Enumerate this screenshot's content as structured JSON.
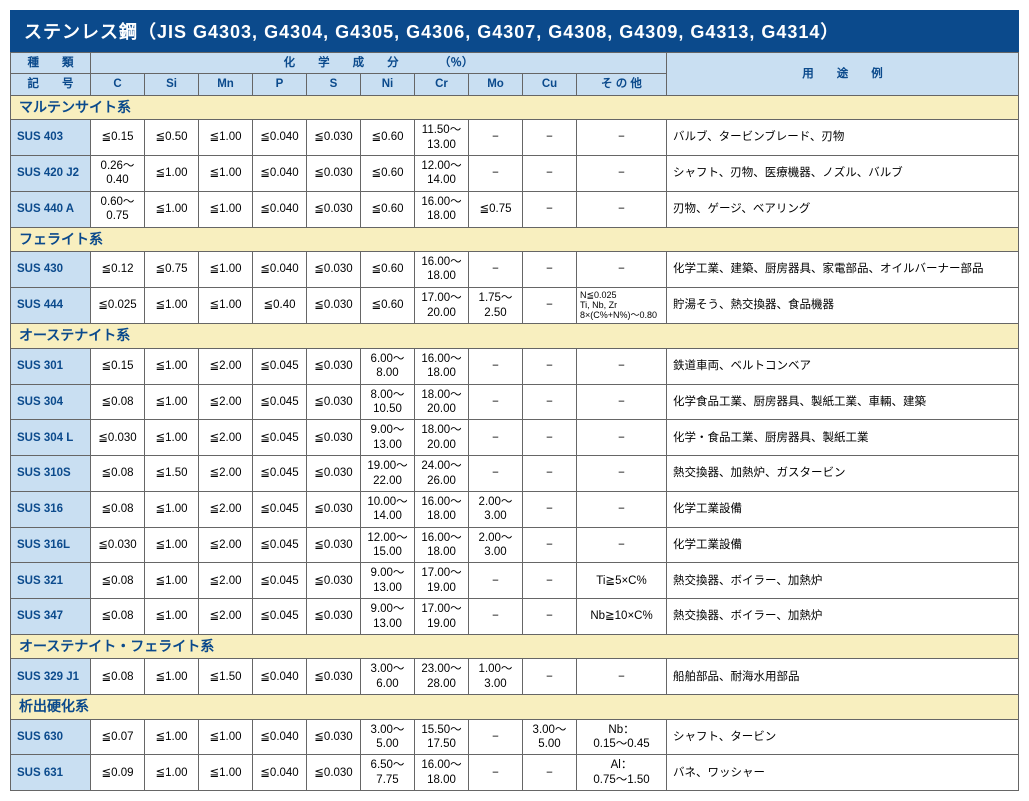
{
  "title": "ステンレス鋼（JIS G4303, G4304, G4305, G4306, G4307, G4308, G4309, G4313, G4314）",
  "headers": {
    "kind": "種　　類",
    "chem": "化　　学　　成　　分　　　　（％）",
    "use": "用　　途　　例",
    "grade": "記　　号",
    "cols": [
      "C",
      "Si",
      "Mn",
      "P",
      "S",
      "Ni",
      "Cr",
      "Mo",
      "Cu",
      "そ の 他"
    ]
  },
  "groups": [
    {
      "name": "マルテンサイト系",
      "rows": [
        {
          "grade": "SUS 403",
          "c": "≦0.15",
          "si": "≦0.50",
          "mn": "≦1.00",
          "p": "≦0.040",
          "s": "≦0.030",
          "ni": "≦0.60",
          "cr": "11.50～\n13.00",
          "mo": "−",
          "cu": "−",
          "other": "−",
          "use": "バルブ、タービンブレード、刃物"
        },
        {
          "grade": "SUS 420 J2",
          "c": "0.26～\n0.40",
          "si": "≦1.00",
          "mn": "≦1.00",
          "p": "≦0.040",
          "s": "≦0.030",
          "ni": "≦0.60",
          "cr": "12.00～\n14.00",
          "mo": "−",
          "cu": "−",
          "other": "−",
          "use": "シャフト、刃物、医療機器、ノズル、バルブ"
        },
        {
          "grade": "SUS 440 A",
          "c": "0.60～\n0.75",
          "si": "≦1.00",
          "mn": "≦1.00",
          "p": "≦0.040",
          "s": "≦0.030",
          "ni": "≦0.60",
          "cr": "16.00～\n18.00",
          "mo": "≦0.75",
          "cu": "−",
          "other": "−",
          "use": "刃物、ゲージ、ベアリング"
        }
      ]
    },
    {
      "name": "フェライト系",
      "rows": [
        {
          "grade": "SUS 430",
          "c": "≦0.12",
          "si": "≦0.75",
          "mn": "≦1.00",
          "p": "≦0.040",
          "s": "≦0.030",
          "ni": "≦0.60",
          "cr": "16.00～\n18.00",
          "mo": "−",
          "cu": "−",
          "other": "−",
          "use": "化学工業、建築、厨房器具、家電部品、オイルバーナー部品"
        },
        {
          "grade": "SUS 444",
          "c": "≦0.025",
          "si": "≦1.00",
          "mn": "≦1.00",
          "p": "≦0.40",
          "s": "≦0.030",
          "ni": "≦0.60",
          "cr": "17.00～\n20.00",
          "mo": "1.75～\n2.50",
          "cu": "−",
          "other": "N≦0.025\nTi, Nb, Zr\n8×(C%+N%)～0.80",
          "other_small": true,
          "use": "貯湯そう、熱交換器、食品機器"
        }
      ]
    },
    {
      "name": "オーステナイト系",
      "rows": [
        {
          "grade": "SUS 301",
          "c": "≦0.15",
          "si": "≦1.00",
          "mn": "≦2.00",
          "p": "≦0.045",
          "s": "≦0.030",
          "ni": "6.00～\n8.00",
          "cr": "16.00～\n18.00",
          "mo": "−",
          "cu": "−",
          "other": "−",
          "use": "鉄道車両、ベルトコンベア"
        },
        {
          "grade": "SUS 304",
          "c": "≦0.08",
          "si": "≦1.00",
          "mn": "≦2.00",
          "p": "≦0.045",
          "s": "≦0.030",
          "ni": "8.00～\n10.50",
          "cr": "18.00～\n20.00",
          "mo": "−",
          "cu": "−",
          "other": "−",
          "use": "化学食品工業、厨房器具、製紙工業、車輛、建築"
        },
        {
          "grade": "SUS 304 L",
          "c": "≦0.030",
          "si": "≦1.00",
          "mn": "≦2.00",
          "p": "≦0.045",
          "s": "≦0.030",
          "ni": "9.00～\n13.00",
          "cr": "18.00～\n20.00",
          "mo": "−",
          "cu": "−",
          "other": "−",
          "use": "化学・食品工業、厨房器具、製紙工業"
        },
        {
          "grade": "SUS 310S",
          "c": "≦0.08",
          "si": "≦1.50",
          "mn": "≦2.00",
          "p": "≦0.045",
          "s": "≦0.030",
          "ni": "19.00～\n22.00",
          "cr": "24.00～\n26.00",
          "mo": "−",
          "cu": "−",
          "other": "−",
          "use": "熱交換器、加熱炉、ガスタービン"
        },
        {
          "grade": "SUS 316",
          "c": "≦0.08",
          "si": "≦1.00",
          "mn": "≦2.00",
          "p": "≦0.045",
          "s": "≦0.030",
          "ni": "10.00～\n14.00",
          "cr": "16.00～\n18.00",
          "mo": "2.00～\n3.00",
          "cu": "−",
          "other": "−",
          "use": "化学工業設備"
        },
        {
          "grade": "SUS 316L",
          "c": "≦0.030",
          "si": "≦1.00",
          "mn": "≦2.00",
          "p": "≦0.045",
          "s": "≦0.030",
          "ni": "12.00～\n15.00",
          "cr": "16.00～\n18.00",
          "mo": "2.00～\n3.00",
          "cu": "−",
          "other": "−",
          "use": "化学工業設備"
        },
        {
          "grade": "SUS 321",
          "c": "≦0.08",
          "si": "≦1.00",
          "mn": "≦2.00",
          "p": "≦0.045",
          "s": "≦0.030",
          "ni": "9.00～\n13.00",
          "cr": "17.00～\n19.00",
          "mo": "−",
          "cu": "−",
          "other": "Ti≧5×C%",
          "use": "熱交換器、ボイラー、加熱炉"
        },
        {
          "grade": "SUS 347",
          "c": "≦0.08",
          "si": "≦1.00",
          "mn": "≦2.00",
          "p": "≦0.045",
          "s": "≦0.030",
          "ni": "9.00～\n13.00",
          "cr": "17.00～\n19.00",
          "mo": "−",
          "cu": "−",
          "other": "Nb≧10×C%",
          "use": "熱交換器、ボイラー、加熱炉"
        }
      ]
    },
    {
      "name": "オーステナイト・フェライト系",
      "rows": [
        {
          "grade": "SUS 329 J1",
          "c": "≦0.08",
          "si": "≦1.00",
          "mn": "≦1.50",
          "p": "≦0.040",
          "s": "≦0.030",
          "ni": "3.00～\n6.00",
          "cr": "23.00～\n28.00",
          "mo": "1.00～\n3.00",
          "cu": "−",
          "other": "−",
          "use": "船舶部品、耐海水用部品"
        }
      ]
    },
    {
      "name": "析出硬化系",
      "rows": [
        {
          "grade": "SUS 630",
          "c": "≦0.07",
          "si": "≦1.00",
          "mn": "≦1.00",
          "p": "≦0.040",
          "s": "≦0.030",
          "ni": "3.00～\n5.00",
          "cr": "15.50～\n17.50",
          "mo": "−",
          "cu": "3.00～\n5.00",
          "other": "Nb：\n0.15～0.45",
          "use": "シャフト、タービン"
        },
        {
          "grade": "SUS 631",
          "c": "≦0.09",
          "si": "≦1.00",
          "mn": "≦1.00",
          "p": "≦0.040",
          "s": "≦0.030",
          "ni": "6.50～\n7.75",
          "cr": "16.00～\n18.00",
          "mo": "−",
          "cu": "−",
          "other": "Al：\n0.75～1.50",
          "use": "バネ、ワッシャー"
        }
      ]
    }
  ]
}
